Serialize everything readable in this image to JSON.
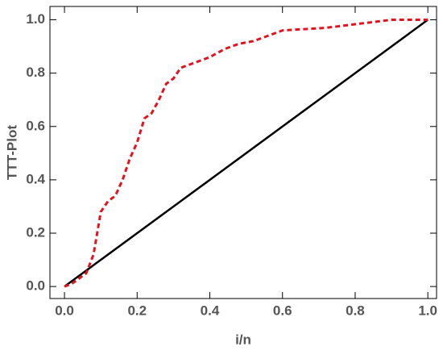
{
  "chart_data": {
    "type": "line",
    "x_label": "i/n",
    "y_label": "TTT-Plot",
    "xlim": [
      -0.04,
      1.024
    ],
    "ylim": [
      -0.045,
      1.05
    ],
    "xticks": [
      {
        "value": 0,
        "label": "0.0"
      },
      0.2,
      0.4,
      0.6,
      0.8,
      {
        "value": 1,
        "label": "1.0"
      }
    ],
    "yticks": [
      {
        "value": 0,
        "label": "0.0"
      },
      0.2,
      0.4,
      0.6,
      0.8,
      {
        "value": 1,
        "label": "1.0"
      }
    ],
    "grid": false,
    "series": [
      {
        "color": "#000000",
        "dashed": false,
        "x": [
          0,
          1
        ],
        "values": [
          0,
          1
        ]
      },
      {
        "color": "#e0141e",
        "dashed": true,
        "x": [
          0,
          0.02,
          0.04,
          0.06,
          0.08,
          0.09,
          0.1,
          0.12,
          0.14,
          0.16,
          0.18,
          0.2,
          0.22,
          0.24,
          0.26,
          0.28,
          0.3,
          0.32,
          0.34,
          0.36,
          0.4,
          0.44,
          0.48,
          0.52,
          0.56,
          0.6,
          0.66,
          0.72,
          0.78,
          0.84,
          0.9,
          0.96,
          1
        ],
        "values": [
          0,
          0.01,
          0.03,
          0.05,
          0.12,
          0.2,
          0.28,
          0.32,
          0.34,
          0.4,
          0.48,
          0.54,
          0.63,
          0.65,
          0.7,
          0.76,
          0.78,
          0.82,
          0.83,
          0.84,
          0.86,
          0.89,
          0.91,
          0.92,
          0.94,
          0.96,
          0.965,
          0.97,
          0.98,
          0.99,
          1,
          1,
          1
        ]
      }
    ]
  }
}
